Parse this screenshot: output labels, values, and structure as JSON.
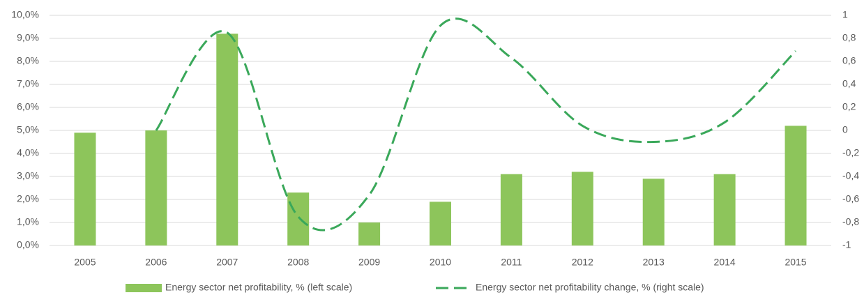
{
  "chart_data": {
    "type": "bar_line_dual_axis",
    "categories": [
      "2005",
      "2006",
      "2007",
      "2008",
      "2009",
      "2010",
      "2011",
      "2012",
      "2013",
      "2014",
      "2015"
    ],
    "series": [
      {
        "name": "Energy sector net profitability, % (left scale)",
        "type": "bar",
        "color": "#8dc55b",
        "values": [
          4.9,
          5.0,
          9.2,
          2.3,
          1.0,
          1.9,
          3.1,
          3.2,
          2.9,
          3.1,
          5.2
        ]
      },
      {
        "name": "Energy sector net profitability change, % (right scale)",
        "type": "line",
        "axis": "y2",
        "color": "#3aa85a",
        "dashed": true,
        "smooth": true,
        "values": [
          null,
          0.0,
          0.85,
          -0.75,
          -0.56,
          0.91,
          0.63,
          0.04,
          -0.1,
          0.07,
          0.69
        ]
      }
    ],
    "ylim": [
      0,
      10
    ],
    "yticks": [
      {
        "value": 0,
        "label": "0,0%"
      },
      {
        "value": 1,
        "label": "1,0%"
      },
      {
        "value": 2,
        "label": "2,0%"
      },
      {
        "value": 3,
        "label": "3,0%"
      },
      {
        "value": 4,
        "label": "4,0%"
      },
      {
        "value": 5,
        "label": "5,0%"
      },
      {
        "value": 6,
        "label": "6,0%"
      },
      {
        "value": 7,
        "label": "7,0%"
      },
      {
        "value": 8,
        "label": "8,0%"
      },
      {
        "value": 9,
        "label": "9,0%"
      },
      {
        "value": 10,
        "label": "10,0%"
      }
    ],
    "y2lim": [
      -1,
      1
    ],
    "y2ticks": [
      -1,
      {
        "value": -0.8,
        "label": "-0,8"
      },
      {
        "value": -0.6,
        "label": "-0,6"
      },
      {
        "value": -0.4,
        "label": "-0,4"
      },
      {
        "value": -0.2,
        "label": "-0,2"
      },
      0,
      {
        "value": 0.2,
        "label": "0,2"
      },
      {
        "value": 0.4,
        "label": "0,4"
      },
      {
        "value": 0.6,
        "label": "0,6"
      },
      {
        "value": 0.8,
        "label": "0,8"
      },
      1
    ],
    "grid": true,
    "legend": "bottom"
  }
}
